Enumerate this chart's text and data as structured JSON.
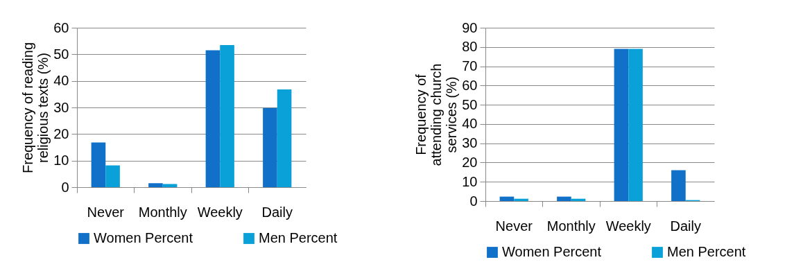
{
  "chart_data": [
    {
      "type": "bar",
      "ylabel": "Frequency of reading religious texts (%)",
      "categories": [
        "Never",
        "Monthly",
        "Weekly",
        "Daily"
      ],
      "ylim": [
        0,
        60
      ],
      "yticks": [
        0,
        10,
        20,
        30,
        40,
        50,
        60
      ],
      "grid": "y",
      "legend": "bottom",
      "series": [
        {
          "name": "Women Percent",
          "color": "#1170c8",
          "values": [
            16.8,
            1.5,
            51.5,
            29.8
          ]
        },
        {
          "name": "Men Percent",
          "color": "#0aa0d8",
          "values": [
            8.2,
            1.2,
            53.5,
            36.8
          ]
        }
      ]
    },
    {
      "type": "bar",
      "ylabel": "Frequency of attending church services (%)",
      "categories": [
        "Never",
        "Monthly",
        "Weekly",
        "Daily"
      ],
      "ylim": [
        0,
        90
      ],
      "yticks": [
        0,
        10,
        20,
        30,
        40,
        50,
        60,
        70,
        80,
        90
      ],
      "grid": "y",
      "legend": "bottom",
      "series": [
        {
          "name": "Women Percent",
          "color": "#1170c8",
          "values": [
            2.3,
            2.3,
            79,
            16
          ]
        },
        {
          "name": "Men Percent",
          "color": "#0aa0d8",
          "values": [
            1.2,
            1.2,
            79,
            0.5
          ]
        }
      ]
    }
  ]
}
